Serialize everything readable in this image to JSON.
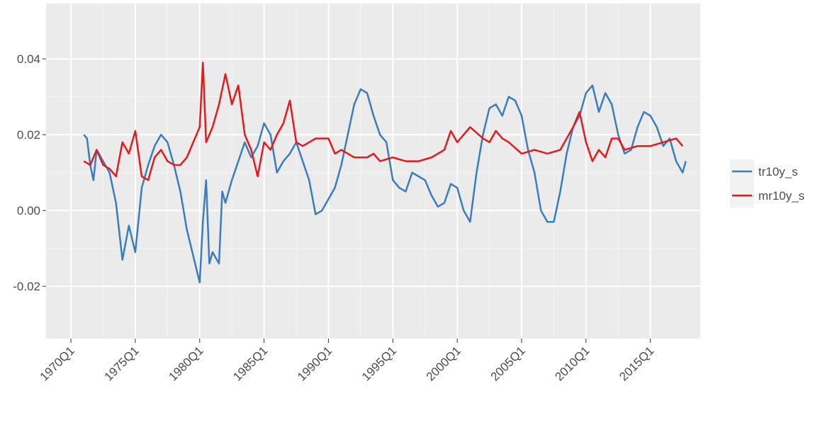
{
  "chart_data": {
    "type": "line",
    "xlim": [
      1968.07,
      2018.87
    ],
    "xticks": [
      {
        "value": 1970,
        "label": "1970Q1"
      },
      {
        "value": 1975,
        "label": "1975Q1"
      },
      {
        "value": 1980,
        "label": "1980Q1"
      },
      {
        "value": 1985,
        "label": "1985Q1"
      },
      {
        "value": 1990,
        "label": "1990Q1"
      },
      {
        "value": 1995,
        "label": "1995Q1"
      },
      {
        "value": 2000,
        "label": "2000Q1"
      },
      {
        "value": 2005,
        "label": "2005Q1"
      },
      {
        "value": 2010,
        "label": "2010Q1"
      },
      {
        "value": 2015,
        "label": "2015Q1"
      }
    ],
    "ylim": [
      -0.0338,
      0.0546
    ],
    "yticks": [
      {
        "value": -0.02,
        "label": "-0.02"
      },
      {
        "value": 0,
        "label": "0.00"
      },
      {
        "value": 0.02,
        "label": "0.02"
      },
      {
        "value": 0.04,
        "label": "0.04"
      }
    ],
    "grid": true,
    "legend_position": "right",
    "series": [
      {
        "name": "tr10y_s",
        "color": "#3a7dbf",
        "x": [
          1971.0,
          1971.25,
          1971.5,
          1971.75,
          1972.0,
          1972.5,
          1973.0,
          1973.5,
          1974.0,
          1974.5,
          1975.0,
          1975.5,
          1976.0,
          1976.5,
          1977.0,
          1977.5,
          1978.0,
          1978.5,
          1979.0,
          1979.5,
          1980.0,
          1980.25,
          1980.5,
          1980.75,
          1981.0,
          1981.5,
          1981.75,
          1982.0,
          1982.5,
          1983.0,
          1983.5,
          1984.0,
          1984.5,
          1985.0,
          1985.5,
          1986.0,
          1986.5,
          1987.0,
          1987.5,
          1988.0,
          1988.5,
          1989.0,
          1989.5,
          1990.0,
          1990.5,
          1991.0,
          1991.5,
          1992.0,
          1992.5,
          1993.0,
          1993.5,
          1994.0,
          1994.5,
          1995.0,
          1995.5,
          1996.0,
          1996.5,
          1997.0,
          1997.5,
          1998.0,
          1998.5,
          1999.0,
          1999.5,
          2000.0,
          2000.5,
          2001.0,
          2001.5,
          2002.0,
          2002.5,
          2003.0,
          2003.5,
          2004.0,
          2004.5,
          2005.0,
          2005.5,
          2006.0,
          2006.5,
          2007.0,
          2007.5,
          2008.0,
          2008.5,
          2009.0,
          2009.5,
          2010.0,
          2010.5,
          2011.0,
          2011.5,
          2012.0,
          2012.5,
          2013.0,
          2013.5,
          2014.0,
          2014.5,
          2015.0,
          2015.5,
          2016.0,
          2016.5,
          2017.0,
          2017.5,
          2017.75
        ],
        "values": [
          0.02,
          0.019,
          0.012,
          0.008,
          0.016,
          0.013,
          0.01,
          0.002,
          -0.013,
          -0.004,
          -0.011,
          0.006,
          0.012,
          0.017,
          0.02,
          0.018,
          0.012,
          0.005,
          -0.005,
          -0.012,
          -0.019,
          -0.003,
          0.008,
          -0.014,
          -0.011,
          -0.014,
          0.005,
          0.002,
          0.008,
          0.013,
          0.018,
          0.014,
          0.017,
          0.023,
          0.02,
          0.01,
          0.013,
          0.015,
          0.018,
          0.013,
          0.008,
          -0.001,
          0.0,
          0.003,
          0.006,
          0.012,
          0.02,
          0.028,
          0.032,
          0.031,
          0.025,
          0.02,
          0.018,
          0.008,
          0.006,
          0.005,
          0.01,
          0.009,
          0.008,
          0.004,
          0.001,
          0.002,
          0.007,
          0.006,
          0.0,
          -0.003,
          0.01,
          0.02,
          0.027,
          0.028,
          0.025,
          0.03,
          0.029,
          0.025,
          0.016,
          0.01,
          0.0,
          -0.003,
          -0.003,
          0.005,
          0.015,
          0.022,
          0.025,
          0.031,
          0.033,
          0.026,
          0.031,
          0.028,
          0.02,
          0.015,
          0.016,
          0.022,
          0.026,
          0.025,
          0.022,
          0.017,
          0.019,
          0.013,
          0.01,
          0.013
        ]
      },
      {
        "name": "mr10y_s",
        "color": "#e41a1c",
        "x": [
          1971.0,
          1971.5,
          1972.0,
          1972.5,
          1973.0,
          1973.5,
          1974.0,
          1974.5,
          1975.0,
          1975.5,
          1976.0,
          1976.5,
          1977.0,
          1977.5,
          1978.0,
          1978.5,
          1979.0,
          1979.5,
          1980.0,
          1980.25,
          1980.5,
          1981.0,
          1981.5,
          1982.0,
          1982.5,
          1983.0,
          1983.5,
          1984.0,
          1984.5,
          1985.0,
          1985.5,
          1986.0,
          1986.5,
          1987.0,
          1987.5,
          1988.0,
          1989.0,
          1990.0,
          1990.5,
          1991.0,
          1992.0,
          1993.0,
          1993.5,
          1994.0,
          1995.0,
          1996.0,
          1997.0,
          1998.0,
          1999.0,
          1999.5,
          2000.0,
          2001.0,
          2002.0,
          2002.5,
          2003.0,
          2003.5,
          2004.0,
          2005.0,
          2006.0,
          2007.0,
          2008.0,
          2009.0,
          2009.5,
          2010.0,
          2010.5,
          2011.0,
          2011.5,
          2012.0,
          2012.5,
          2013.0,
          2014.0,
          2015.0,
          2016.0,
          2017.0,
          2017.5
        ],
        "values": [
          0.013,
          0.012,
          0.016,
          0.012,
          0.011,
          0.009,
          0.018,
          0.015,
          0.021,
          0.009,
          0.008,
          0.014,
          0.016,
          0.013,
          0.012,
          0.012,
          0.014,
          0.018,
          0.022,
          0.039,
          0.018,
          0.022,
          0.028,
          0.036,
          0.028,
          0.033,
          0.02,
          0.016,
          0.009,
          0.018,
          0.016,
          0.02,
          0.023,
          0.029,
          0.018,
          0.017,
          0.019,
          0.019,
          0.015,
          0.016,
          0.014,
          0.014,
          0.015,
          0.013,
          0.014,
          0.013,
          0.013,
          0.014,
          0.016,
          0.021,
          0.018,
          0.022,
          0.019,
          0.018,
          0.021,
          0.019,
          0.018,
          0.015,
          0.016,
          0.015,
          0.016,
          0.022,
          0.026,
          0.018,
          0.013,
          0.016,
          0.014,
          0.019,
          0.019,
          0.016,
          0.017,
          0.017,
          0.018,
          0.019,
          0.017
        ]
      }
    ]
  }
}
